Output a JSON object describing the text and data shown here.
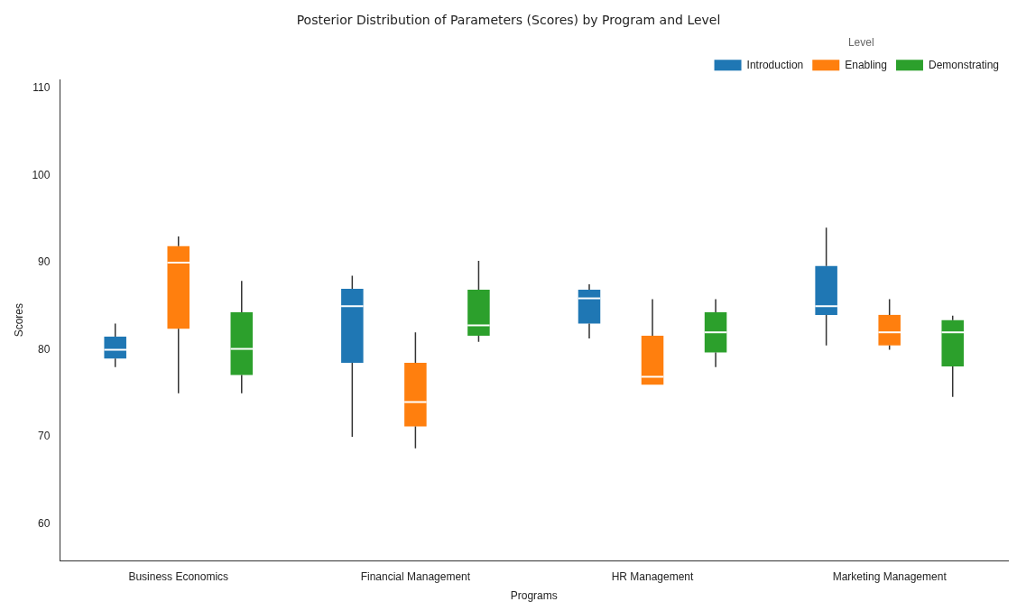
{
  "chart_data": {
    "type": "box",
    "title": "Posterior Distribution of Parameters (Scores) by Program and Level",
    "xlabel": "Programs",
    "ylabel": "Scores",
    "legend_title": "Level",
    "legend": "top right",
    "grid": false,
    "categories": [
      "Business Economics",
      "Financial Management",
      "HR Management",
      "Marketing Management"
    ],
    "ylim": [
      55.8,
      111
    ],
    "yticks": [
      60,
      70,
      80,
      90,
      100,
      110
    ],
    "series": [
      {
        "name": "Introduction",
        "color": "#1f77b4",
        "boxes": [
          {
            "low": 78,
            "q1": 79,
            "median": 80,
            "q3": 81.5,
            "high": 83
          },
          {
            "low": 70,
            "q1": 78.5,
            "median": 85,
            "q3": 87,
            "high": 88.5
          },
          {
            "low": 81.3,
            "q1": 83,
            "median": 85.9,
            "q3": 86.9,
            "high": 87.5
          },
          {
            "low": 80.5,
            "q1": 84,
            "median": 85,
            "q3": 89.6,
            "high": 94
          }
        ]
      },
      {
        "name": "Enabling",
        "color": "#ff7f0e",
        "boxes": [
          {
            "low": 75,
            "q1": 82.4,
            "median": 90,
            "q3": 91.9,
            "high": 93
          },
          {
            "low": 68.7,
            "q1": 71.2,
            "median": 74,
            "q3": 78.5,
            "high": 82
          },
          {
            "low": 76,
            "q1": 76,
            "median": 76.9,
            "q3": 81.6,
            "high": 85.8
          },
          {
            "low": 80,
            "q1": 80.5,
            "median": 82,
            "q3": 84,
            "high": 85.8
          }
        ]
      },
      {
        "name": "Demonstrating",
        "color": "#2ca02c",
        "boxes": [
          {
            "low": 75,
            "q1": 77.1,
            "median": 80.1,
            "q3": 84.3,
            "high": 87.9
          },
          {
            "low": 80.9,
            "q1": 81.6,
            "median": 82.8,
            "q3": 86.9,
            "high": 90.2
          },
          {
            "low": 78,
            "q1": 79.7,
            "median": 82,
            "q3": 84.3,
            "high": 85.8
          },
          {
            "low": 74.6,
            "q1": 78.1,
            "median": 82,
            "q3": 83.4,
            "high": 83.9
          }
        ]
      }
    ]
  }
}
